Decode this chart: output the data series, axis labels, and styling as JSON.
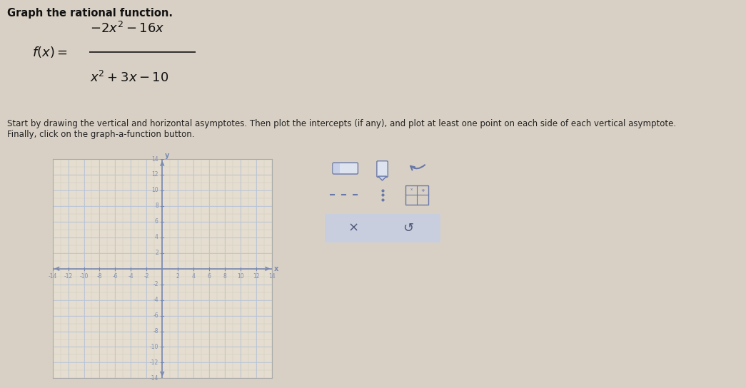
{
  "title": "Graph the rational function.",
  "instructions": "Start by drawing the vertical and horizontal asymptotes. Then plot the intercepts (if any), and plot at least one point on each side of each vertical asymptote.\nFinally, click on the graph-a-function button.",
  "xmin": -14,
  "xmax": 14,
  "ymin": -14,
  "ymax": 14,
  "xticks": [
    -14,
    -12,
    -10,
    -8,
    -6,
    -4,
    -2,
    2,
    4,
    6,
    8,
    10,
    12,
    14
  ],
  "yticks": [
    -14,
    -12,
    -10,
    -8,
    -6,
    -4,
    -2,
    2,
    4,
    6,
    8,
    10,
    12,
    14
  ],
  "grid_major_color": "#b8c4d8",
  "grid_minor_color": "#ccc8bc",
  "grid_bg": "#e4ddd0",
  "axis_color": "#7888b0",
  "tick_label_color": "#8090b0",
  "outer_bg": "#d8d0c4",
  "panel_border_color": "#9aabcc",
  "panel_bg": "#f5f3ee",
  "panel_bottom_bg": "#c8cede",
  "icon_color": "#6878a8",
  "bottom_text_color": "#505878"
}
